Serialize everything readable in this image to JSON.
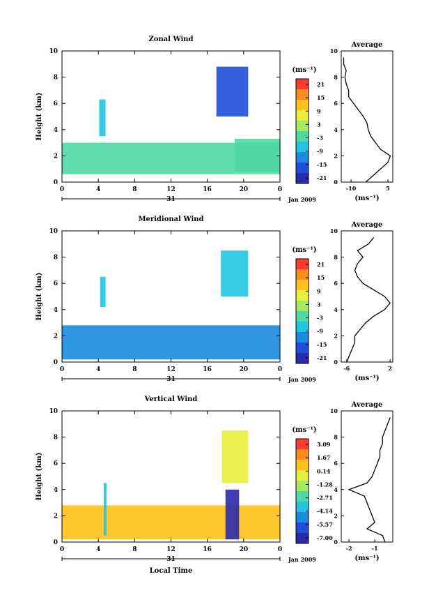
{
  "chart_data": [
    {
      "type": "heatmap",
      "title": "Zonal Wind",
      "ylabel": "Height (km)",
      "yticks": [
        "0",
        "2",
        "4",
        "6",
        "8",
        "10"
      ],
      "ylim": [
        0,
        10
      ],
      "xticks": [
        "0",
        "4",
        "8",
        "12",
        "16",
        "20",
        "0"
      ],
      "xlim": [
        0,
        24
      ],
      "date_label": "31",
      "date_right": "Jan 2009",
      "colorbar": {
        "unit": "(ms⁻¹)",
        "ticks": [
          "21",
          "15",
          "9",
          "3",
          "-3",
          "-9",
          "-15",
          "-21"
        ],
        "range": [
          -21,
          21
        ],
        "colors": [
          "#ff3b30",
          "#ff8a1f",
          "#ffc21a",
          "#e8ee3a",
          "#a6ea62",
          "#4fd8a6",
          "#22c3e0",
          "#1a8ae0",
          "#1f4fd8",
          "#2a2aa8"
        ]
      },
      "regions": [
        {
          "x0": 0,
          "x1": 24,
          "y0": 0.6,
          "y1": 3.0,
          "value": -2
        },
        {
          "x0": 4.1,
          "x1": 4.8,
          "y0": 3.5,
          "y1": 6.3,
          "value": -7
        },
        {
          "x0": 17,
          "x1": 20.5,
          "y0": 5.0,
          "y1": 8.8,
          "value": -14
        },
        {
          "x0": 19,
          "x1": 24,
          "y0": 0.8,
          "y1": 3.3,
          "value": -4
        }
      ],
      "mean_profile": {
        "title": "Average",
        "xlabel": "(ms⁻¹)",
        "xticks": [
          "-10",
          "5"
        ],
        "xlim": [
          -14,
          7
        ],
        "height_km": [
          0,
          0.5,
          1,
          1.5,
          2,
          2.5,
          3,
          3.5,
          4,
          4.5,
          5,
          5.5,
          6,
          6.5,
          7,
          7.5,
          8,
          8.5,
          9,
          9.5
        ],
        "values": [
          -4,
          -1,
          2,
          5,
          6,
          2,
          0,
          -2,
          -3,
          -3.5,
          -5,
          -7,
          -9,
          -11,
          -11,
          -12,
          -12.5,
          -12,
          -13,
          -13
        ]
      }
    },
    {
      "type": "heatmap",
      "title": "Meridional Wind",
      "ylabel": "Height (km)",
      "yticks": [
        "0",
        "2",
        "4",
        "6",
        "8",
        "10"
      ],
      "ylim": [
        0,
        10
      ],
      "xticks": [
        "0",
        "4",
        "8",
        "12",
        "16",
        "20",
        "0"
      ],
      "xlim": [
        0,
        24
      ],
      "date_label": "31",
      "date_right": "Jan 2009",
      "colorbar": {
        "unit": "(ms⁻¹)",
        "ticks": [
          "21",
          "15",
          "9",
          "3",
          "-3",
          "-9",
          "-15",
          "-21"
        ],
        "range": [
          -21,
          21
        ],
        "colors": [
          "#ff3b30",
          "#ff8a1f",
          "#ffc21a",
          "#e8ee3a",
          "#a6ea62",
          "#4fd8a6",
          "#22c3e0",
          "#1a8ae0",
          "#1f4fd8",
          "#2a2aa8"
        ]
      },
      "regions": [
        {
          "x0": 0,
          "x1": 24,
          "y0": 0.2,
          "y1": 2.8,
          "value": -10
        },
        {
          "x0": 17.5,
          "x1": 20.5,
          "y0": 5.0,
          "y1": 8.5,
          "value": -7
        },
        {
          "x0": 4.2,
          "x1": 4.8,
          "y0": 4.2,
          "y1": 6.5,
          "value": -8
        }
      ],
      "mean_profile": {
        "title": "Average",
        "xlabel": "(ms⁻¹)",
        "xticks": [
          "-6",
          "2"
        ],
        "xlim": [
          -7,
          2.5
        ],
        "height_km": [
          0,
          0.5,
          1,
          1.5,
          2,
          2.5,
          3,
          3.5,
          4,
          4.5,
          5,
          5.5,
          6,
          6.5,
          7,
          7.5,
          8,
          8.5,
          9,
          9.5
        ],
        "values": [
          -6,
          -5.5,
          -5,
          -4.5,
          -4.5,
          -3.5,
          -2.5,
          -1,
          1,
          2,
          1,
          -1,
          -3,
          -4,
          -4.5,
          -4,
          -3,
          -4,
          -2,
          -1
        ]
      }
    },
    {
      "type": "heatmap",
      "title": "Vertical Wind",
      "xlabel": "Local Time",
      "ylabel": "Height (km)",
      "yticks": [
        "0",
        "2",
        "4",
        "6",
        "8",
        "10"
      ],
      "ylim": [
        0,
        10
      ],
      "xticks": [
        "0",
        "4",
        "8",
        "12",
        "16",
        "20",
        "0"
      ],
      "xlim": [
        0,
        24
      ],
      "date_label": "31",
      "date_right": "Jan 2009",
      "colorbar": {
        "unit": "(ms⁻¹)",
        "ticks": [
          "3.09",
          "1.67",
          "0.14",
          "-1.28",
          "-2.71",
          "-4.14",
          "-5.57",
          "-7.00"
        ],
        "range": [
          -7.0,
          3.09
        ],
        "colors": [
          "#ff3b30",
          "#ff8a1f",
          "#ffc21a",
          "#e8ee3a",
          "#a6ea62",
          "#4fd8a6",
          "#22c3e0",
          "#1a8ae0",
          "#1f4fd8",
          "#2a2aa8"
        ]
      },
      "regions": [
        {
          "x0": 0,
          "x1": 24,
          "y0": 0.2,
          "y1": 2.8,
          "value": 0.3
        },
        {
          "x0": 18,
          "x1": 19.5,
          "y0": 0.2,
          "y1": 4.0,
          "value": -6.5
        },
        {
          "x0": 4.6,
          "x1": 4.9,
          "y0": 0.5,
          "y1": 4.5,
          "value": -3.5
        },
        {
          "x0": 17.6,
          "x1": 20.5,
          "y0": 4.5,
          "y1": 8.5,
          "value": -0.8
        }
      ],
      "mean_profile": {
        "title": "Average",
        "xlabel": "(ms⁻¹)",
        "xticks": [
          "-2",
          "-1"
        ],
        "xlim": [
          -2.3,
          -0.3
        ],
        "height_km": [
          0,
          0.5,
          1,
          1.5,
          2,
          2.5,
          3,
          3.5,
          4,
          4.5,
          5,
          5.5,
          6,
          6.5,
          7,
          7.5,
          8,
          8.5,
          9,
          9.5
        ],
        "values": [
          -0.6,
          -0.7,
          -1.3,
          -1.0,
          -1.1,
          -1.2,
          -1.3,
          -1.4,
          -2.0,
          -1.3,
          -1.1,
          -1.0,
          -0.9,
          -0.8,
          -0.8,
          -0.7,
          -0.7,
          -0.6,
          -0.5,
          -0.4
        ]
      }
    }
  ]
}
